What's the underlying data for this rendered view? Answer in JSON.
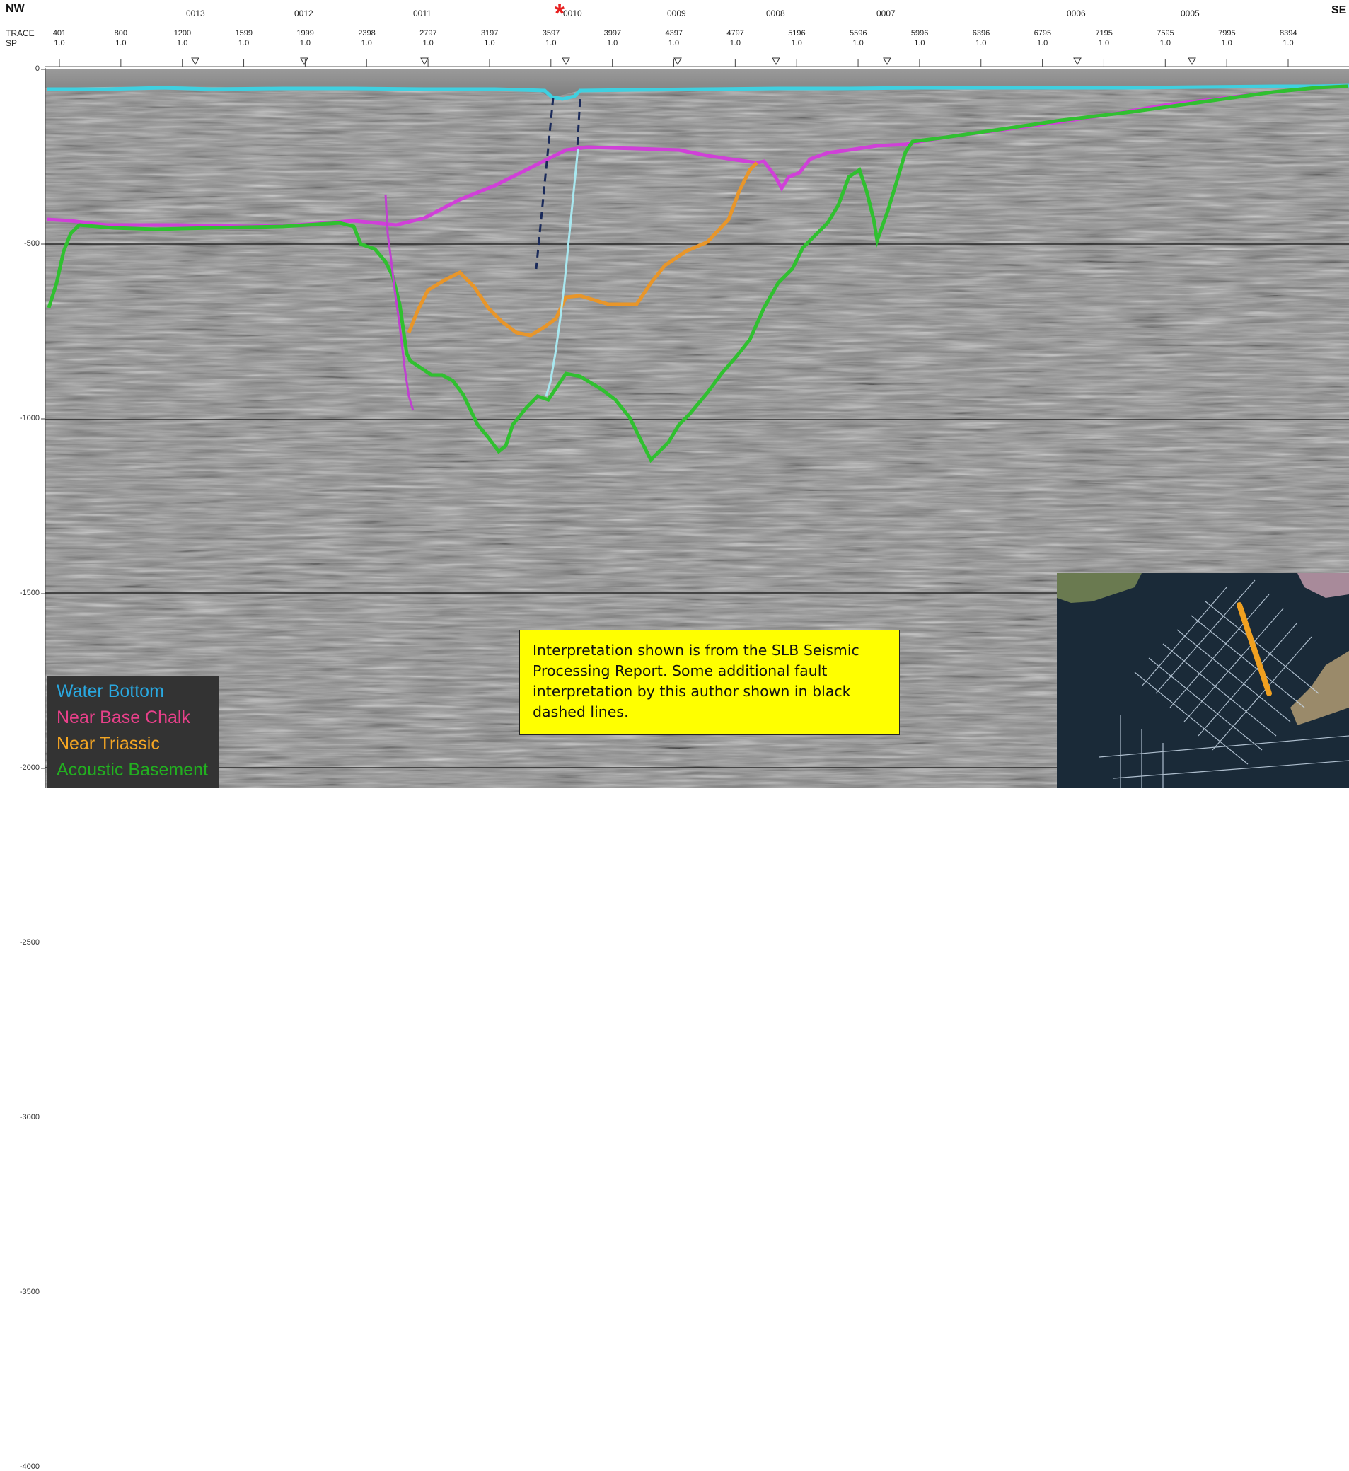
{
  "header": {
    "left_label": "NW",
    "right_label": "SE",
    "row_trace_label": "TRACE",
    "row_sp_label": "SP",
    "line_ids": [
      "0013",
      "0012",
      "0011",
      "0010",
      "0009",
      "0008",
      "0007",
      "0006",
      "0005"
    ],
    "trace_values": [
      "401",
      "800",
      "1200",
      "1599",
      "1999",
      "2398",
      "2797",
      "3197",
      "3597",
      "3997",
      "4397",
      "4797",
      "5196",
      "5596",
      "5996",
      "6396",
      "6795",
      "7195",
      "7595",
      "7995",
      "8394"
    ],
    "sp_value": "1.0",
    "marker_symbol": "*"
  },
  "depth_axis": {
    "labels": [
      "0",
      "-500",
      "-1000",
      "-1500",
      "-2000",
      "-2500",
      "-3000",
      "-3500",
      "-4000"
    ],
    "reference_lines": [
      "-1000",
      "-2000",
      "-3000",
      "-4000"
    ]
  },
  "legend": {
    "items": [
      {
        "label": "Water Bottom",
        "color": "#29a8e0"
      },
      {
        "label": "Near Base Chalk",
        "color": "#e8408a"
      },
      {
        "label": "Near Triassic",
        "color": "#f5a623"
      },
      {
        "label": "Acoustic Basement",
        "color": "#22b020"
      }
    ]
  },
  "note": {
    "text": "Interpretation shown is from the SLB Seismic Processing Report. Some additional fault interpretation by this author shown in black dashed lines."
  },
  "horizon_colors": {
    "water_bottom": "#3fd0e0",
    "near_base_chalk": "#d040d8",
    "near_triassic": "#e8962a",
    "acoustic_basement": "#30c030",
    "fault_light": "#a8e8f0",
    "fault_pink": "#c040d0",
    "fault_dashed": "#1a2a5a",
    "marker": "#e82020"
  },
  "inset": {
    "background": "#1a2a38",
    "section_color": "#f0a020"
  }
}
